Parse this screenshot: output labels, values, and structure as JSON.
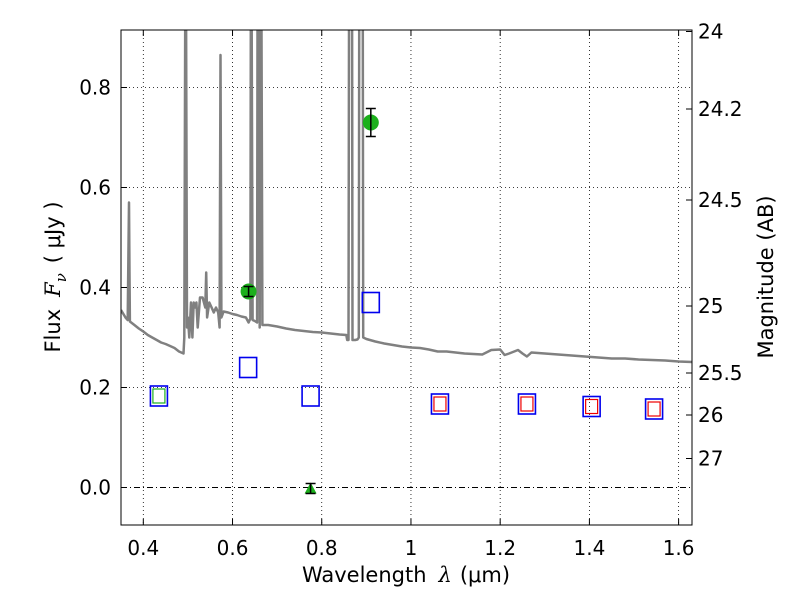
{
  "chart_data": {
    "type": "scatter",
    "xlabel_text": "Wavelength",
    "xlabel_symbol": "λ",
    "xlabel_unit": "(μm)",
    "ylabel_text": "Flux",
    "ylabel_symbol": "F",
    "ylabel_subscript": "ν",
    "ylabel_unit": "( μJy )",
    "y2label": "Magnitude (AB)",
    "xlim": [
      0.35,
      1.63
    ],
    "ylim": [
      -0.075,
      0.915
    ],
    "grid": true,
    "x_ticks": [
      {
        "value": 0.4,
        "label": "0.4"
      },
      {
        "value": 0.6,
        "label": "0.6"
      },
      {
        "value": 0.8,
        "label": "0.8"
      },
      {
        "value": 1.0,
        "label": "1"
      },
      {
        "value": 1.2,
        "label": "1.2"
      },
      {
        "value": 1.4,
        "label": "1.4"
      },
      {
        "value": 1.6,
        "label": "1.6"
      }
    ],
    "y_ticks": [
      {
        "value": 0.0,
        "label": "0.0"
      },
      {
        "value": 0.2,
        "label": "0.2"
      },
      {
        "value": 0.4,
        "label": "0.4"
      },
      {
        "value": 0.6,
        "label": "0.6"
      },
      {
        "value": 0.8,
        "label": "0.8"
      }
    ],
    "y2_ticks": [
      {
        "flux": 0.912,
        "label": "24"
      },
      {
        "flux": 0.757,
        "label": "24.2"
      },
      {
        "flux": 0.575,
        "label": "24.5"
      },
      {
        "flux": 0.363,
        "label": "25"
      },
      {
        "flux": 0.229,
        "label": "25.5"
      },
      {
        "flux": 0.145,
        "label": "26"
      },
      {
        "flux": 0.058,
        "label": "27"
      }
    ],
    "zero_line": 0.0,
    "model_spectrum": {
      "color": "#808080",
      "points": [
        [
          0.35,
          0.355
        ],
        [
          0.36,
          0.34
        ],
        [
          0.365,
          0.335
        ],
        [
          0.367,
          0.5
        ],
        [
          0.368,
          0.57
        ],
        [
          0.369,
          0.43
        ],
        [
          0.37,
          0.332
        ],
        [
          0.38,
          0.325
        ],
        [
          0.39,
          0.318
        ],
        [
          0.4,
          0.312
        ],
        [
          0.41,
          0.305
        ],
        [
          0.42,
          0.3
        ],
        [
          0.43,
          0.295
        ],
        [
          0.44,
          0.29
        ],
        [
          0.45,
          0.287
        ],
        [
          0.46,
          0.283
        ],
        [
          0.47,
          0.279
        ],
        [
          0.48,
          0.272
        ],
        [
          0.49,
          0.268
        ],
        [
          0.492,
          0.3
        ],
        [
          0.494,
          0.93
        ],
        [
          0.496,
          0.93
        ],
        [
          0.498,
          0.32
        ],
        [
          0.5,
          0.34
        ],
        [
          0.503,
          0.3
        ],
        [
          0.507,
          0.37
        ],
        [
          0.51,
          0.3
        ],
        [
          0.513,
          0.37
        ],
        [
          0.516,
          0.36
        ],
        [
          0.519,
          0.37
        ],
        [
          0.522,
          0.32
        ],
        [
          0.527,
          0.38
        ],
        [
          0.533,
          0.38
        ],
        [
          0.539,
          0.36
        ],
        [
          0.541,
          0.43
        ],
        [
          0.543,
          0.34
        ],
        [
          0.548,
          0.37
        ],
        [
          0.553,
          0.36
        ],
        [
          0.558,
          0.35
        ],
        [
          0.563,
          0.36
        ],
        [
          0.568,
          0.35
        ],
        [
          0.571,
          0.32
        ],
        [
          0.573,
          0.865
        ],
        [
          0.575,
          0.34
        ],
        [
          0.58,
          0.352
        ],
        [
          0.59,
          0.35
        ],
        [
          0.6,
          0.347
        ],
        [
          0.61,
          0.345
        ],
        [
          0.62,
          0.342
        ],
        [
          0.63,
          0.34
        ],
        [
          0.636,
          0.33
        ],
        [
          0.64,
          0.338
        ],
        [
          0.641,
          0.92
        ],
        [
          0.643,
          0.92
        ],
        [
          0.645,
          0.335
        ],
        [
          0.65,
          0.333
        ],
        [
          0.655,
          0.33
        ],
        [
          0.656,
          0.92
        ],
        [
          0.66,
          0.92
        ],
        [
          0.661,
          0.32
        ],
        [
          0.662,
          0.92
        ],
        [
          0.665,
          0.92
        ],
        [
          0.667,
          0.325
        ],
        [
          0.68,
          0.325
        ],
        [
          0.7,
          0.322
        ],
        [
          0.72,
          0.318
        ],
        [
          0.74,
          0.315
        ],
        [
          0.76,
          0.313
        ],
        [
          0.78,
          0.311
        ],
        [
          0.8,
          0.31
        ],
        [
          0.82,
          0.308
        ],
        [
          0.84,
          0.306
        ],
        [
          0.855,
          0.305
        ],
        [
          0.857,
          0.295
        ],
        [
          0.86,
          0.295
        ],
        [
          0.861,
          0.92
        ],
        [
          0.868,
          0.92
        ],
        [
          0.869,
          0.295
        ],
        [
          0.875,
          0.295
        ],
        [
          0.88,
          0.296
        ],
        [
          0.883,
          0.3
        ],
        [
          0.884,
          0.92
        ],
        [
          0.892,
          0.92
        ],
        [
          0.893,
          0.3
        ],
        [
          0.9,
          0.297
        ],
        [
          0.92,
          0.292
        ],
        [
          0.94,
          0.288
        ],
        [
          0.96,
          0.285
        ],
        [
          0.98,
          0.282
        ],
        [
          1.0,
          0.28
        ],
        [
          1.02,
          0.279
        ],
        [
          1.04,
          0.276
        ],
        [
          1.06,
          0.272
        ],
        [
          1.08,
          0.272
        ],
        [
          1.1,
          0.27
        ],
        [
          1.12,
          0.268
        ],
        [
          1.14,
          0.267
        ],
        [
          1.16,
          0.266
        ],
        [
          1.18,
          0.275
        ],
        [
          1.2,
          0.276
        ],
        [
          1.21,
          0.265
        ],
        [
          1.22,
          0.268
        ],
        [
          1.24,
          0.275
        ],
        [
          1.25,
          0.268
        ],
        [
          1.26,
          0.262
        ],
        [
          1.27,
          0.27
        ],
        [
          1.3,
          0.268
        ],
        [
          1.33,
          0.266
        ],
        [
          1.36,
          0.264
        ],
        [
          1.39,
          0.262
        ],
        [
          1.42,
          0.26
        ],
        [
          1.45,
          0.258
        ],
        [
          1.48,
          0.258
        ],
        [
          1.51,
          0.256
        ],
        [
          1.54,
          0.255
        ],
        [
          1.57,
          0.254
        ],
        [
          1.6,
          0.252
        ],
        [
          1.63,
          0.251
        ]
      ]
    },
    "observed_points": {
      "color": "#1cb01c",
      "points": [
        {
          "x": 0.636,
          "y": 0.392,
          "err": 0.01
        },
        {
          "x": 0.91,
          "y": 0.73,
          "err": 0.028
        }
      ]
    },
    "upper_limit_points": {
      "color": "#1cb01c",
      "points": [
        {
          "x": 0.775,
          "y": -0.002,
          "err": 0.01
        }
      ]
    },
    "model_photometry": {
      "color": "#0000ee",
      "points": [
        {
          "x": 0.435,
          "y": 0.183
        },
        {
          "x": 0.635,
          "y": 0.24
        },
        {
          "x": 0.775,
          "y": 0.183
        },
        {
          "x": 0.91,
          "y": 0.37
        },
        {
          "x": 1.065,
          "y": 0.167
        },
        {
          "x": 1.26,
          "y": 0.167
        },
        {
          "x": 1.405,
          "y": 0.162
        },
        {
          "x": 1.545,
          "y": 0.157
        }
      ]
    },
    "red_photometry": {
      "color": "#ee0000",
      "points": [
        {
          "x": 1.065,
          "y": 0.167
        },
        {
          "x": 1.26,
          "y": 0.167
        },
        {
          "x": 1.405,
          "y": 0.162
        },
        {
          "x": 1.545,
          "y": 0.157
        }
      ]
    },
    "green_photometry": {
      "color": "#1cb01c",
      "points": [
        {
          "x": 0.435,
          "y": 0.183
        }
      ]
    }
  }
}
